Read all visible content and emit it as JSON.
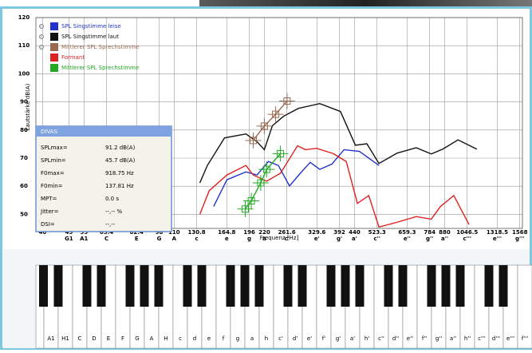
{
  "chart_data": {
    "type": "line",
    "y_label": "Lautstärke dB(A)",
    "x_label": "Frequenz [Hz]",
    "x_scale": "log",
    "grid": true,
    "xlim": [
      38,
      1600
    ],
    "ylim": [
      45,
      120
    ],
    "xticks": [
      40,
      49,
      55,
      65.4,
      82.4,
      98,
      110,
      130.8,
      164.8,
      196,
      220,
      261.6,
      329.6,
      392,
      440,
      523.3,
      659.3,
      784,
      880,
      1046.5,
      1318.5,
      1568
    ],
    "note_labels": [
      "G1",
      "A1",
      "C",
      "E",
      "G",
      "A",
      "c",
      "e",
      "g",
      "a",
      "c'",
      "e'",
      "g'",
      "a'",
      "c''",
      "e''",
      "g''",
      "a''",
      "c'''",
      "e'''",
      "g'''"
    ],
    "yticks": [
      50,
      60,
      70,
      80,
      90,
      100,
      110,
      120
    ],
    "series": [
      {
        "name": "SPL Singstimme leise",
        "color": "#2233cc",
        "x": [
          149,
          165,
          191,
          208,
          227,
          245,
          267,
          290,
          313,
          337,
          370,
          406,
          457,
          531
        ],
        "values": [
          52.8,
          62.3,
          65.1,
          64,
          68.8,
          67.4,
          60.1,
          64.6,
          68.5,
          66,
          67.9,
          73,
          72.4,
          67.4
        ]
      },
      {
        "name": "SPL Singstimme laut",
        "color": "#111111",
        "x": [
          134,
          142,
          162,
          191,
          208,
          220,
          234,
          255,
          286,
          337,
          395,
          443,
          484,
          531,
          611,
          707,
          794,
          867,
          975,
          1127
        ],
        "values": [
          61.2,
          67.4,
          77.2,
          78.6,
          75.8,
          73,
          81.5,
          84.9,
          87.7,
          89.4,
          86.6,
          74.6,
          75.1,
          68.1,
          71.8,
          73.7,
          71.5,
          73.2,
          76.5,
          73.2
        ]
      },
      {
        "name": "Mittlerer SPL Sprechstimme",
        "color": "#9a6a50",
        "x": [
          202,
          220,
          240,
          262
        ],
        "values": [
          76.3,
          81.4,
          85.6,
          90.3
        ]
      },
      {
        "name": "Formant",
        "color": "#dd2222",
        "x": [
          134,
          144,
          165,
          191,
          202,
          224,
          249,
          284,
          302,
          329,
          374,
          413,
          450,
          491,
          531,
          611,
          707,
          794,
          852,
          944,
          1061
        ],
        "values": [
          50,
          58.4,
          64,
          67.4,
          64,
          61.8,
          64.6,
          74.4,
          73,
          73.5,
          71.6,
          68.8,
          53.9,
          56.7,
          45.5,
          47.2,
          49.2,
          48.3,
          52.8,
          56.7,
          46.4
        ]
      },
      {
        "name": "Mittlerer SPL Sprechstimme",
        "color": "#22aa22",
        "x": [
          190,
          199,
          214,
          224,
          249
        ],
        "values": [
          51.9,
          54.8,
          61.2,
          66,
          71.6
        ]
      }
    ]
  },
  "info_box": {
    "title": "DIVAS",
    "rows": [
      [
        "SPLmax=",
        "91.2 dB(A)"
      ],
      [
        "SPLmin=",
        "45.7 dB(A)"
      ],
      [
        "F0max=",
        "918.75 Hz"
      ],
      [
        "F0min=",
        "137.81 Hz"
      ],
      [
        "MPT=",
        "0.0 s"
      ],
      [
        "Jitter=",
        "--,-- %"
      ],
      [
        "DSI=",
        "--,--"
      ]
    ]
  },
  "keyboard": {
    "keys": [
      "A1",
      "H1",
      "C",
      "D",
      "E",
      "F",
      "G",
      "A",
      "H",
      "c",
      "d",
      "e",
      "f",
      "g",
      "a",
      "h",
      "c'",
      "d'",
      "e'",
      "f'",
      "g'",
      "a'",
      "h'",
      "c''",
      "d''",
      "e''",
      "f''",
      "g''",
      "a''",
      "h''",
      "c'''",
      "d'''",
      "e'''",
      "f'''"
    ]
  }
}
